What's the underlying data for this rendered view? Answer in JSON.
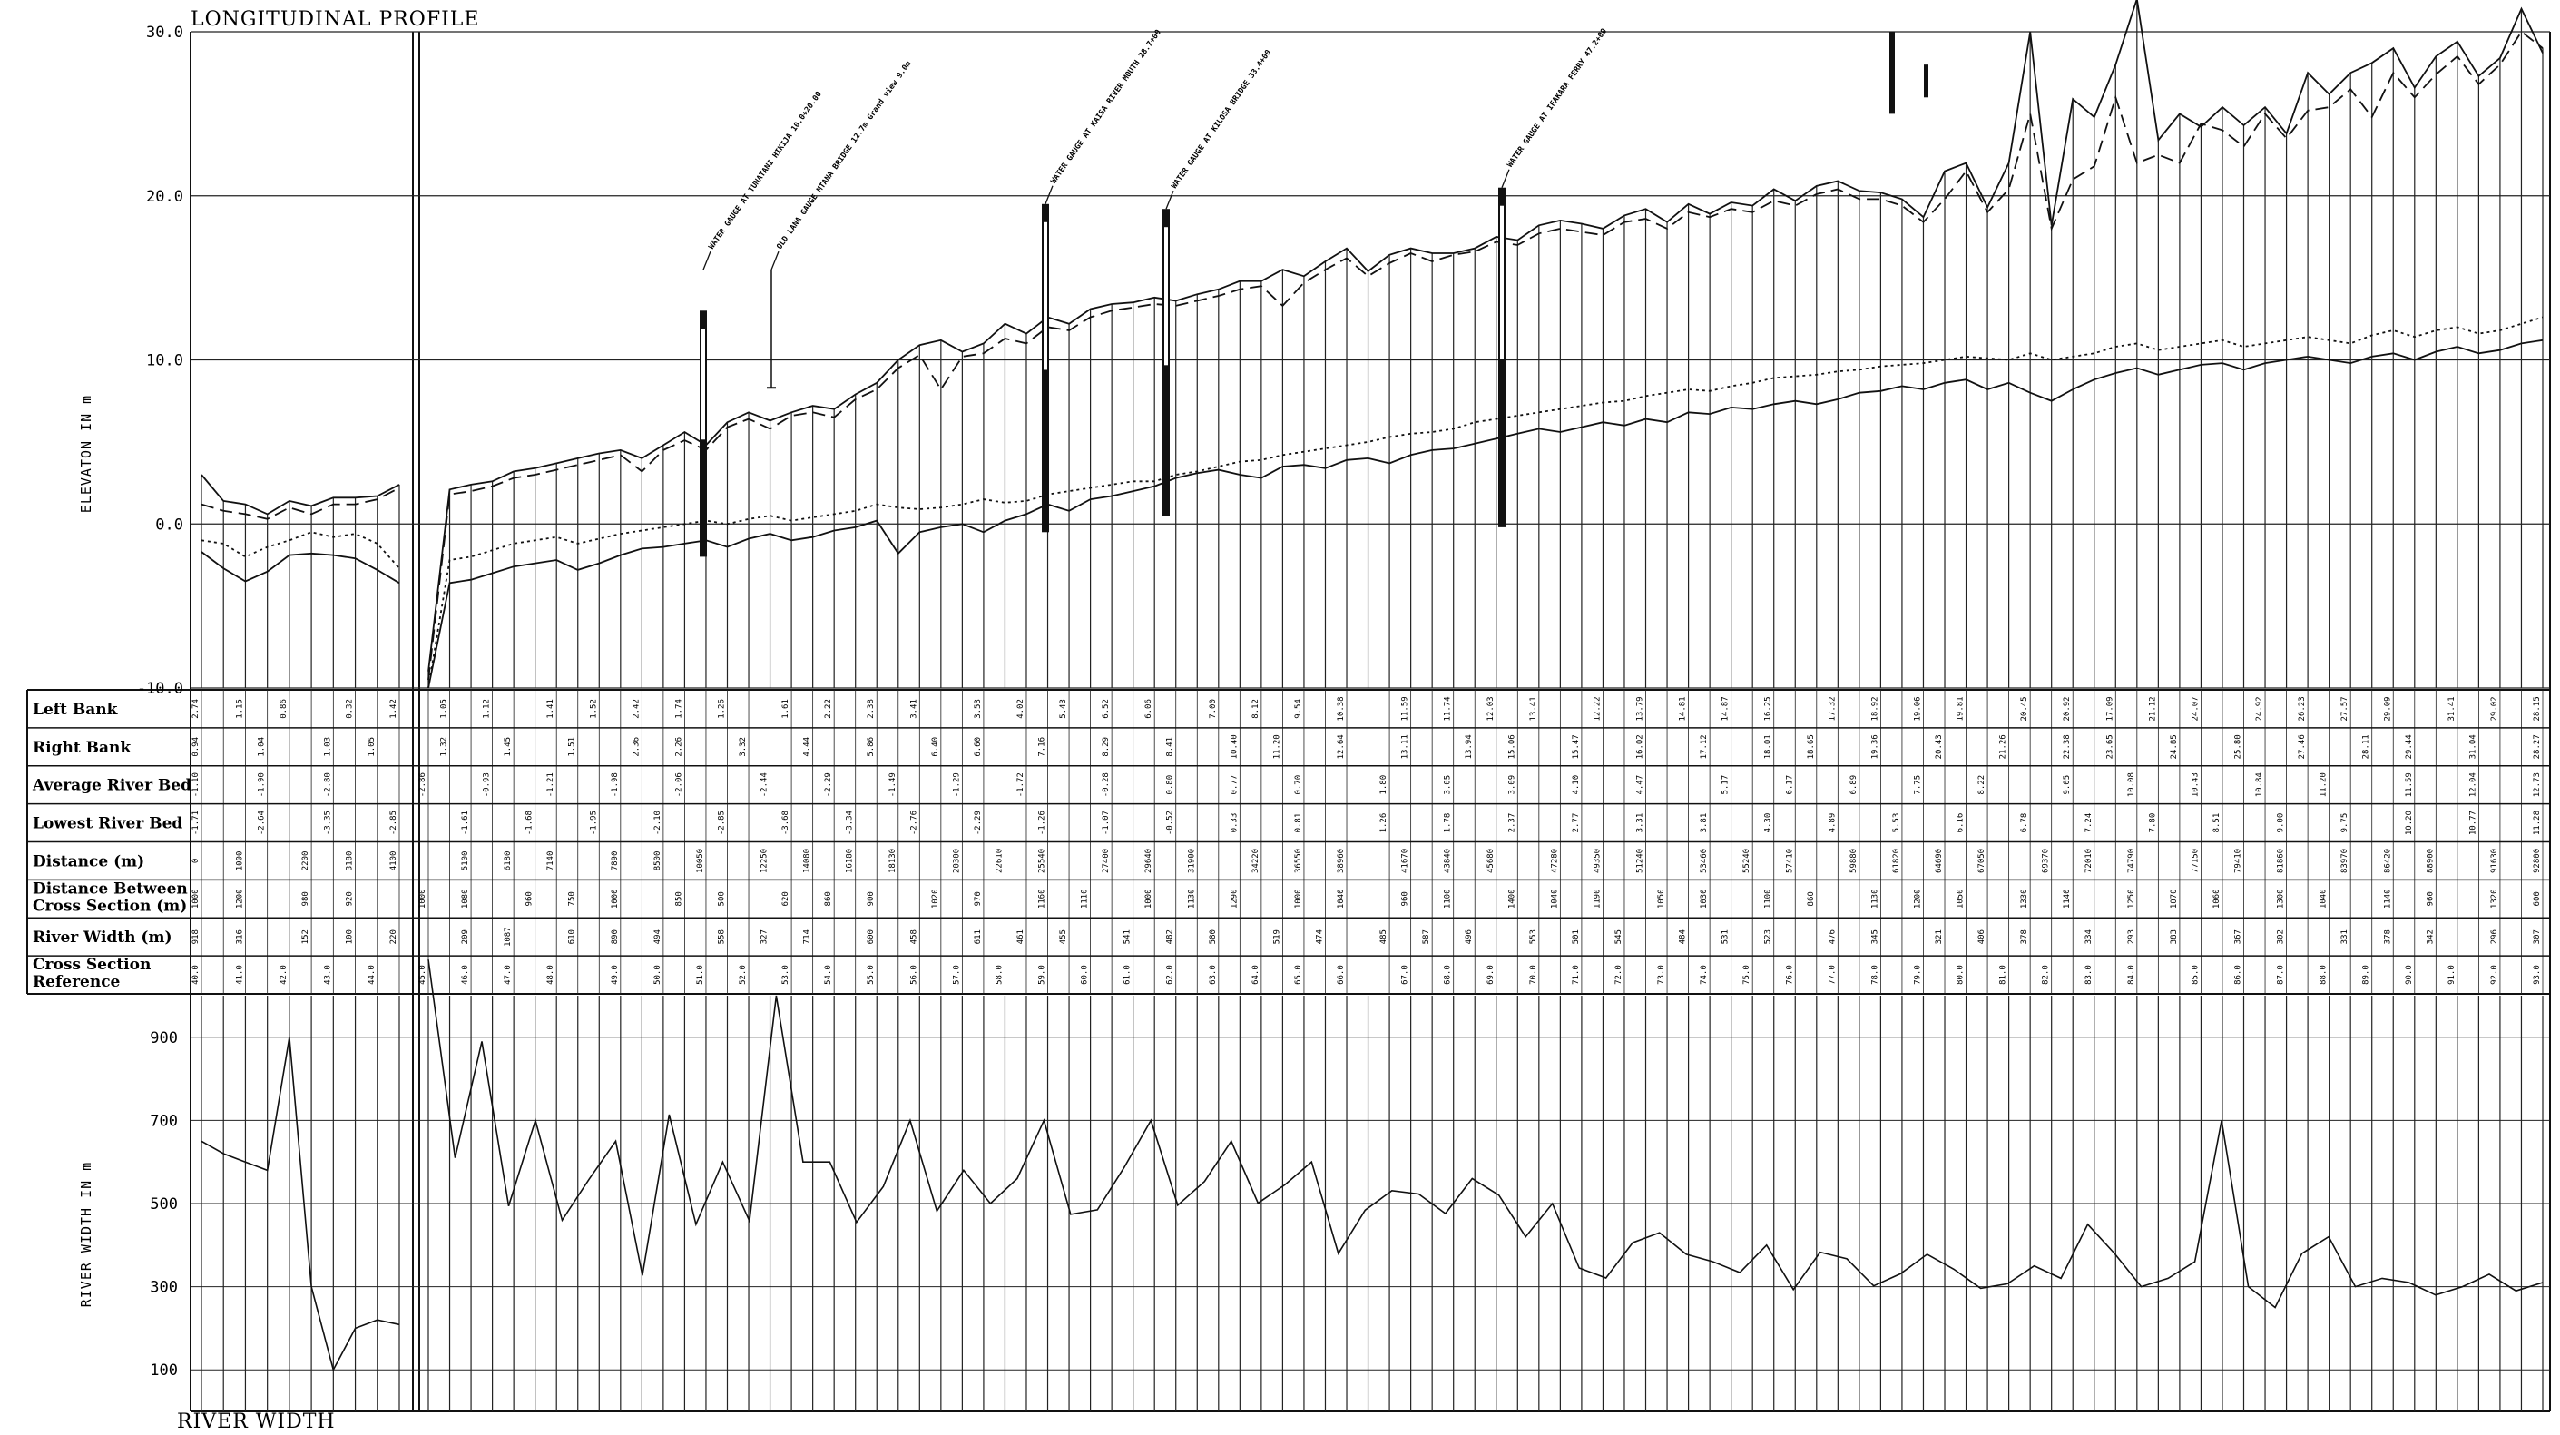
{
  "chart_data": [
    {
      "type": "line",
      "title": "LONGITUDINAL PROFILE",
      "ylabel": "ELEVATON IN m",
      "ylim": [
        -10,
        30
      ],
      "yticks": [
        "30.0",
        "20.0",
        "10.0",
        "0.0",
        "-10.0"
      ],
      "ytick_values": [
        30,
        20,
        10,
        0,
        -10
      ],
      "grid": true,
      "gauge_notes": [
        "WATER GAUGE AT TUNATANI HIKIJA 10.0+20.00",
        "OLD LANA GAUGE MTANA BRIDGE 12.7m Grand view 9.0m",
        "WATER GAUGE AT KAISA RIVER MOUTH 28.7+00",
        "WATER GAUGE AT KILOSA BRIDGE 33.4+00",
        "WATER GAUGE AT IFAKARA FERRY 47.2+00"
      ],
      "series": [
        {
          "line": "solid",
          "values": [
            3.0,
            1.4,
            1.2,
            0.6,
            1.4,
            1.1,
            1.6,
            1.6,
            1.7,
            2.4,
            -9.0,
            2.1,
            2.4,
            2.6,
            3.2,
            3.4,
            3.7,
            4.0,
            4.3,
            4.5,
            4.0,
            4.8,
            5.6,
            4.8,
            6.2,
            6.8,
            6.3,
            6.8,
            7.2,
            7.0,
            7.9,
            8.6,
            10.0,
            10.9,
            11.2,
            10.5,
            11.0,
            12.2,
            11.6,
            12.6,
            12.2,
            13.1,
            13.4,
            13.5,
            13.8,
            13.6,
            14.0,
            14.3,
            14.8,
            14.8,
            15.5,
            15.1,
            16.0,
            16.8,
            15.4,
            16.4,
            16.8,
            16.5,
            16.5,
            16.8,
            17.5,
            17.3,
            18.2,
            18.5,
            18.3,
            18.0,
            18.8,
            19.2,
            18.4,
            19.5,
            18.9,
            19.6,
            19.4,
            20.4,
            19.7,
            20.6,
            20.9,
            20.3,
            20.2,
            19.8,
            18.7,
            21.5,
            22.0,
            19.3,
            22.0,
            30.0,
            18.2,
            25.9,
            24.8,
            28.0,
            32.0,
            23.4,
            25.0,
            24.2,
            25.4,
            24.3,
            25.4,
            23.8,
            27.5,
            26.2,
            27.5,
            28.1,
            29.0,
            26.6,
            28.5,
            29.4,
            27.3,
            28.4,
            31.4,
            28.7
          ]
        },
        {
          "line": "dashed",
          "values": [
            1.2,
            0.8,
            0.6,
            0.3,
            1.0,
            0.6,
            1.2,
            1.2,
            1.5,
            2.2,
            -9.5,
            1.8,
            2.0,
            2.3,
            2.8,
            3.0,
            3.3,
            3.6,
            3.9,
            4.2,
            3.2,
            4.5,
            5.1,
            4.5,
            5.9,
            6.4,
            5.8,
            6.6,
            6.8,
            6.5,
            7.6,
            8.2,
            9.5,
            10.3,
            8.2,
            10.2,
            10.4,
            11.3,
            11.0,
            12.0,
            11.8,
            12.6,
            13.0,
            13.2,
            13.4,
            13.3,
            13.6,
            13.9,
            14.3,
            14.5,
            13.3,
            14.7,
            15.5,
            16.2,
            15.1,
            15.9,
            16.5,
            16.0,
            16.4,
            16.6,
            17.2,
            17.0,
            17.7,
            18.0,
            17.8,
            17.6,
            18.4,
            18.6,
            18.0,
            19.0,
            18.7,
            19.2,
            19.0,
            19.7,
            19.4,
            20.1,
            20.4,
            19.8,
            19.8,
            19.4,
            18.4,
            19.8,
            21.5,
            19.0,
            20.4,
            25.0,
            18.0,
            21.0,
            21.8,
            26.0,
            22.0,
            22.5,
            22.0,
            24.4,
            24.0,
            23.0,
            25.0,
            23.5,
            25.2,
            25.4,
            26.5,
            24.8,
            27.5,
            26.0,
            27.4,
            28.5,
            26.8,
            28.0,
            30.0,
            29.0
          ]
        },
        {
          "line": "dotted",
          "values": [
            -1.0,
            -1.2,
            -2.0,
            -1.4,
            -1.0,
            -0.5,
            -0.8,
            -0.6,
            -1.2,
            -2.7,
            -10.0,
            -2.2,
            -2.0,
            -1.6,
            -1.2,
            -1.0,
            -0.8,
            -1.2,
            -0.9,
            -0.6,
            -0.4,
            -0.2,
            0.0,
            0.2,
            0.0,
            0.3,
            0.5,
            0.2,
            0.4,
            0.6,
            0.8,
            1.2,
            1.0,
            0.9,
            1.0,
            1.2,
            1.5,
            1.3,
            1.4,
            1.8,
            2.0,
            2.2,
            2.4,
            2.6,
            2.6,
            3.0,
            3.2,
            3.5,
            3.8,
            3.9,
            4.2,
            4.4,
            4.6,
            4.8,
            5.0,
            5.3,
            5.5,
            5.6,
            5.8,
            6.2,
            6.4,
            6.6,
            6.8,
            7.0,
            7.2,
            7.4,
            7.5,
            7.8,
            8.0,
            8.2,
            8.1,
            8.4,
            8.6,
            8.9,
            9.0,
            9.1,
            9.3,
            9.4,
            9.6,
            9.7,
            9.8,
            10.0,
            10.2,
            10.1,
            10.0,
            10.4,
            10.0,
            10.2,
            10.4,
            10.8,
            11.0,
            10.6,
            10.8,
            11.0,
            11.2,
            10.8,
            11.0,
            11.2,
            11.4,
            11.2,
            11.0,
            11.5,
            11.8,
            11.4,
            11.8,
            12.0,
            11.6,
            11.8,
            12.2,
            12.6
          ]
        },
        {
          "line": "solid",
          "values": [
            -1.7,
            -2.7,
            -3.5,
            -2.9,
            -1.9,
            -1.8,
            -1.9,
            -2.1,
            -2.8,
            -3.6,
            -10.0,
            -3.6,
            -3.4,
            -3.0,
            -2.6,
            -2.4,
            -2.2,
            -2.8,
            -2.4,
            -1.9,
            -1.5,
            -1.4,
            -1.2,
            -1.0,
            -1.4,
            -0.9,
            -0.6,
            -1.0,
            -0.8,
            -0.4,
            -0.2,
            0.2,
            -1.8,
            -0.5,
            -0.2,
            0.0,
            -0.5,
            0.2,
            0.6,
            1.2,
            0.8,
            1.5,
            1.7,
            2.0,
            2.3,
            2.8,
            3.1,
            3.3,
            3.0,
            2.8,
            3.5,
            3.6,
            3.4,
            3.9,
            4.0,
            3.7,
            4.2,
            4.5,
            4.6,
            4.9,
            5.2,
            5.5,
            5.8,
            5.6,
            5.9,
            6.2,
            6.0,
            6.4,
            6.2,
            6.8,
            6.7,
            7.1,
            7.0,
            7.3,
            7.5,
            7.3,
            7.6,
            8.0,
            8.1,
            8.4,
            8.2,
            8.6,
            8.8,
            8.2,
            8.6,
            8.0,
            7.5,
            8.2,
            8.8,
            9.2,
            9.5,
            9.1,
            9.4,
            9.7,
            9.8,
            9.4,
            9.8,
            10.0,
            10.2,
            10.0,
            9.8,
            10.2,
            10.4,
            10.0,
            10.5,
            10.8,
            10.4,
            10.6,
            11.0,
            11.2
          ]
        }
      ]
    },
    {
      "type": "table",
      "rows": [
        "Left Bank",
        "Right Bank",
        "Average River Bed",
        "Lowest River Bed",
        "Distance (m)",
        "Distance Between Cross Section (m)",
        "River Width (m)",
        "Cross Section Reference"
      ],
      "sample_cells": {
        "Left Bank": [
          "2.74",
          "1.15",
          "0.86",
          "0.32",
          "1.42",
          "1.05",
          "1.12",
          "1.41",
          "1.52",
          "2.42",
          "1.74",
          "1.26",
          "1.61",
          "2.22",
          "2.38",
          "3.41",
          "3.53",
          "4.02",
          "5.43",
          "6.52",
          "6.06",
          "7.00",
          "8.12",
          "9.54",
          "10.38",
          "11.59",
          "11.74",
          "12.03",
          "13.41",
          "12.22",
          "13.79",
          "14.81",
          "14.87",
          "16.25",
          "17.32",
          "18.92",
          "19.06",
          "19.81",
          "20.45",
          "20.92",
          "17.09",
          "21.12",
          "24.07",
          "24.92",
          "26.23",
          "27.57",
          "29.09",
          "31.41",
          "29.02",
          "28.15"
        ],
        "Right Bank": [
          "0.94",
          "1.04",
          "1.03",
          "1.05",
          "1.32",
          "1.45",
          "1.51",
          "2.36",
          "2.26",
          "3.32",
          "4.44",
          "5.86",
          "6.40",
          "6.60",
          "7.16",
          "8.29",
          "8.41",
          "10.40",
          "11.20",
          "12.64",
          "13.11",
          "13.94",
          "15.06",
          "15.47",
          "16.02",
          "17.12",
          "18.01",
          "18.65",
          "19.36",
          "20.43",
          "21.26",
          "22.38",
          "23.65",
          "24.85",
          "25.80",
          "27.46",
          "28.11",
          "29.44",
          "31.04",
          "28.27"
        ],
        "Average River Bed": [
          "-1.10",
          "-1.90",
          "-2.80",
          "-2.86",
          "-0.93",
          "-1.21",
          "-1.98",
          "-2.06",
          "-2.44",
          "-2.29",
          "-1.49",
          "-1.29",
          "-1.72",
          "-0.28",
          "0.80",
          "0.77",
          "0.70",
          "1.80",
          "3.05",
          "3.09",
          "4.10",
          "4.47",
          "5.17",
          "6.17",
          "6.89",
          "7.75",
          "8.22",
          "9.05",
          "10.08",
          "10.43",
          "10.84",
          "11.20",
          "11.59",
          "12.04",
          "12.73"
        ],
        "Lowest River Bed": [
          "-1.71",
          "-2.64",
          "-3.35",
          "-2.85",
          "-1.61",
          "-1.68",
          "-1.95",
          "-2.10",
          "-2.85",
          "-3.68",
          "-3.34",
          "-2.76",
          "-2.29",
          "-1.26",
          "-1.07",
          "-0.52",
          "0.33",
          "0.81",
          "1.26",
          "1.78",
          "2.37",
          "2.77",
          "3.31",
          "3.81",
          "4.30",
          "4.89",
          "5.53",
          "6.16",
          "6.78",
          "7.24",
          "7.80",
          "8.51",
          "9.00",
          "9.75",
          "10.20",
          "10.77",
          "11.28"
        ],
        "Distance (m)": [
          "0",
          "1000",
          "2200",
          "3180",
          "4100",
          "5100",
          "6180",
          "7140",
          "7890",
          "8500",
          "10050",
          "12250",
          "14080",
          "16180",
          "18130",
          "20300",
          "22610",
          "25540",
          "27400",
          "29640",
          "31900",
          "34220",
          "36550",
          "38960",
          "41670",
          "43840",
          "45680",
          "47280",
          "49350",
          "51240",
          "53460",
          "55240",
          "57410",
          "59880",
          "61820",
          "64690",
          "67050",
          "69370",
          "72010",
          "74790",
          "77150",
          "79410",
          "81860",
          "83970",
          "86420",
          "88900",
          "91630",
          "92800"
        ],
        "Distance Between Cross Section (m)": [
          "1000",
          "1200",
          "980",
          "920",
          "1000",
          "1080",
          "960",
          "750",
          "1000",
          "850",
          "500",
          "620",
          "860",
          "900",
          "1020",
          "970",
          "1160",
          "1110",
          "1000",
          "1130",
          "1290",
          "1000",
          "1040",
          "960",
          "1100",
          "1400",
          "1040",
          "1190",
          "1050",
          "1030",
          "1100",
          "860",
          "1130",
          "1200",
          "1050",
          "1330",
          "1140",
          "1250",
          "1070",
          "1060",
          "1300",
          "1040",
          "1140",
          "960",
          "1320",
          "600"
        ],
        "River Width (m)": [
          "918",
          "316",
          "152",
          "100",
          "220",
          "209",
          "1087",
          "610",
          "890",
          "494",
          "558",
          "327",
          "714",
          "600",
          "458",
          "611",
          "461",
          "455",
          "541",
          "482",
          "580",
          "519",
          "474",
          "485",
          "587",
          "496",
          "553",
          "501",
          "545",
          "484",
          "531",
          "523",
          "476",
          "345",
          "321",
          "406",
          "378",
          "334",
          "293",
          "383",
          "367",
          "302",
          "331",
          "378",
          "342",
          "296",
          "307"
        ],
        "Cross Section Reference": [
          "40.0",
          "41.0",
          "42.0",
          "43.0",
          "44.0",
          "45.0",
          "46.0",
          "47.0",
          "48.0",
          "49.0",
          "50.0",
          "51.0",
          "52.0",
          "53.0",
          "54.0",
          "55.0",
          "56.0",
          "57.0",
          "58.0",
          "59.0",
          "60.0",
          "61.0",
          "62.0",
          "63.0",
          "64.0",
          "65.0",
          "66.0",
          "67.0",
          "68.0",
          "69.0",
          "70.0",
          "71.0",
          "72.0",
          "73.0",
          "74.0",
          "75.0",
          "76.0",
          "77.0",
          "78.0",
          "79.0",
          "80.0",
          "81.0",
          "82.0",
          "83.0",
          "84.0",
          "85.0",
          "86.0",
          "87.0",
          "88.0",
          "89.0",
          "90.0",
          "91.0",
          "92.0",
          "93.0"
        ]
      }
    },
    {
      "type": "line",
      "title": "RIVER WIDTH",
      "ylabel": "RIVER WIDTH IN m",
      "ylim": [
        0,
        1000
      ],
      "yticks": [
        "900",
        "700",
        "500",
        "300",
        "100"
      ],
      "ytick_values": [
        900,
        700,
        500,
        300,
        100
      ],
      "grid": true,
      "series": [
        {
          "line": "solid",
          "values": [
            650,
            620,
            600,
            580,
            900,
            300,
            100,
            200,
            220,
            209,
            1087,
            610,
            890,
            494,
            700,
            460,
            558,
            650,
            327,
            714,
            450,
            600,
            458,
            1000,
            600,
            600,
            455,
            541,
            700,
            482,
            580,
            500,
            560,
            700,
            474,
            485,
            587,
            700,
            496,
            553,
            650,
            501,
            545,
            600,
            380,
            484,
            531,
            523,
            476,
            560,
            520,
            420,
            500,
            345,
            321,
            406,
            430,
            378,
            360,
            334,
            400,
            293,
            383,
            367,
            302,
            331,
            378,
            342,
            296,
            307,
            350,
            320,
            450,
            380,
            300,
            320,
            360,
            700,
            300,
            250,
            380,
            420,
            300,
            320,
            310,
            280,
            300,
            330,
            290,
            310
          ]
        }
      ]
    }
  ]
}
